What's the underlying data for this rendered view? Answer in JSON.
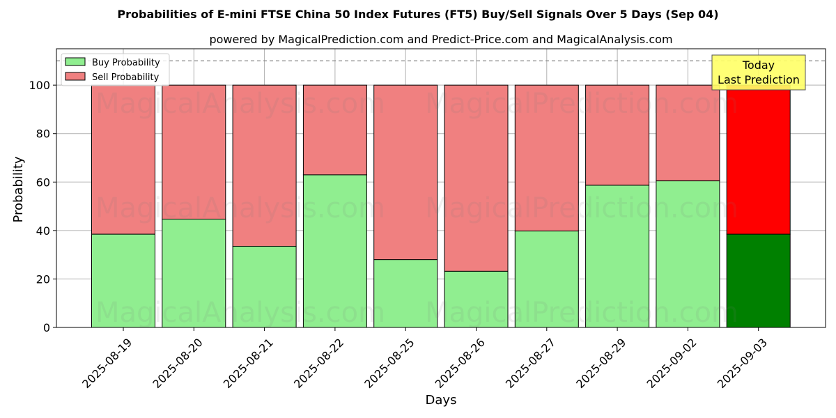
{
  "chart_data": {
    "type": "bar",
    "stacked": true,
    "title": "Probabilities of E-mini FTSE China 50 Index Futures (FT5) Buy/Sell Signals Over 5 Days (Sep 04)",
    "subtitle": "powered by MagicalPrediction.com and Predict-Price.com and MagicalAnalysis.com",
    "xlabel": "Days",
    "ylabel": "Probability",
    "ylim": [
      0,
      115
    ],
    "yticks": [
      0,
      20,
      40,
      60,
      80,
      100
    ],
    "grid": true,
    "legend_position": "top-left",
    "reference_line": 110,
    "categories": [
      "2025-08-19",
      "2025-08-20",
      "2025-08-21",
      "2025-08-22",
      "2025-08-25",
      "2025-08-26",
      "2025-08-27",
      "2025-08-29",
      "2025-09-02",
      "2025-09-03"
    ],
    "series": [
      {
        "name": "Buy Probability",
        "color": "#90ee90",
        "values": [
          38.5,
          44.7,
          33.5,
          63.0,
          28.0,
          23.2,
          39.8,
          58.7,
          60.5,
          38.5
        ]
      },
      {
        "name": "Sell Probability",
        "color": "#f08080",
        "values": [
          61.5,
          55.3,
          66.5,
          37.0,
          72.0,
          76.8,
          60.2,
          41.3,
          39.5,
          61.5
        ]
      }
    ],
    "highlight": {
      "index": 9,
      "buy_color": "#008000",
      "sell_color": "#ff0000"
    },
    "annotation": {
      "lines": [
        "Today",
        "Last Prediction"
      ],
      "background": "#ffff66"
    },
    "watermarks": [
      "MagicalAnalysis.com",
      "MagicalPrediction.com"
    ]
  }
}
